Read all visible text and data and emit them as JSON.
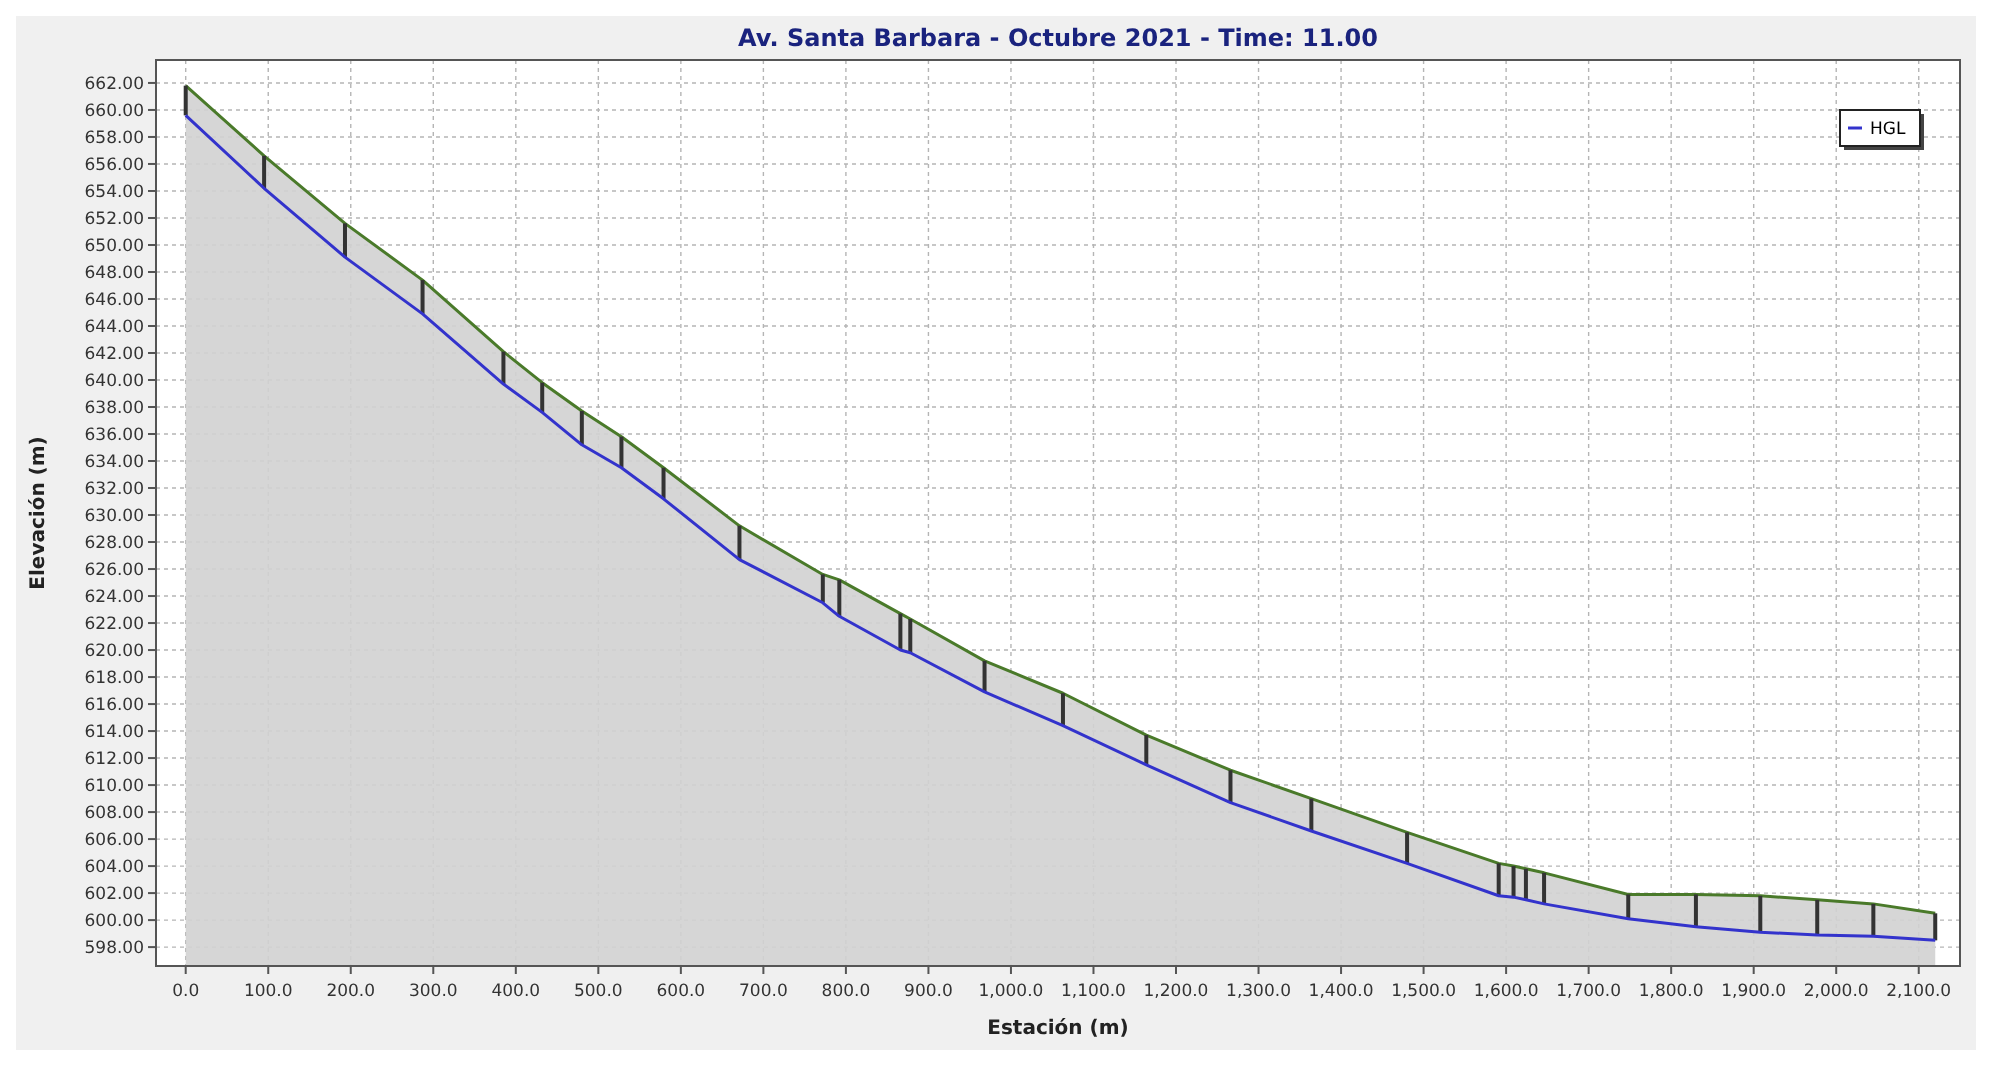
{
  "chart_data": {
    "type": "area",
    "title": "Av. Santa Barbara - Octubre 2021 - Time: 11.00",
    "xlabel": "Estación (m)",
    "ylabel": "Elevación (m)",
    "xlim": [
      -36,
      2150
    ],
    "ylim": [
      596.6,
      663.7
    ],
    "xticks": [
      {
        "value": 0,
        "label": "0.0"
      },
      {
        "value": 100,
        "label": "100.0"
      },
      {
        "value": 200,
        "label": "200.0"
      },
      {
        "value": 300,
        "label": "300.0"
      },
      {
        "value": 400,
        "label": "400.0"
      },
      {
        "value": 500,
        "label": "500.0"
      },
      {
        "value": 600,
        "label": "600.0"
      },
      {
        "value": 700,
        "label": "700.0"
      },
      {
        "value": 800,
        "label": "800.0"
      },
      {
        "value": 900,
        "label": "900.0"
      },
      {
        "value": 1000,
        "label": "1,000.0"
      },
      {
        "value": 1100,
        "label": "1,100.0"
      },
      {
        "value": 1200,
        "label": "1,200.0"
      },
      {
        "value": 1300,
        "label": "1,300.0"
      },
      {
        "value": 1400,
        "label": "1,400.0"
      },
      {
        "value": 1500,
        "label": "1,500.0"
      },
      {
        "value": 1600,
        "label": "1,600.0"
      },
      {
        "value": 1700,
        "label": "1,700.0"
      },
      {
        "value": 1800,
        "label": "1,800.0"
      },
      {
        "value": 1900,
        "label": "1,900.0"
      },
      {
        "value": 2000,
        "label": "2,000.0"
      },
      {
        "value": 2100,
        "label": "2,100.0"
      }
    ],
    "yticks": [
      {
        "value": 598,
        "label": "598.00"
      },
      {
        "value": 600,
        "label": "600.00"
      },
      {
        "value": 602,
        "label": "602.00"
      },
      {
        "value": 604,
        "label": "604.00"
      },
      {
        "value": 606,
        "label": "606.00"
      },
      {
        "value": 608,
        "label": "608.00"
      },
      {
        "value": 610,
        "label": "610.00"
      },
      {
        "value": 612,
        "label": "612.00"
      },
      {
        "value": 614,
        "label": "614.00"
      },
      {
        "value": 616,
        "label": "616.00"
      },
      {
        "value": 618,
        "label": "618.00"
      },
      {
        "value": 620,
        "label": "620.00"
      },
      {
        "value": 622,
        "label": "622.00"
      },
      {
        "value": 624,
        "label": "624.00"
      },
      {
        "value": 626,
        "label": "626.00"
      },
      {
        "value": 628,
        "label": "628.00"
      },
      {
        "value": 630,
        "label": "630.00"
      },
      {
        "value": 632,
        "label": "632.00"
      },
      {
        "value": 634,
        "label": "634.00"
      },
      {
        "value": 636,
        "label": "636.00"
      },
      {
        "value": 638,
        "label": "638.00"
      },
      {
        "value": 640,
        "label": "640.00"
      },
      {
        "value": 642,
        "label": "642.00"
      },
      {
        "value": 644,
        "label": "644.00"
      },
      {
        "value": 646,
        "label": "646.00"
      },
      {
        "value": 648,
        "label": "648.00"
      },
      {
        "value": 650,
        "label": "650.00"
      },
      {
        "value": 652,
        "label": "652.00"
      },
      {
        "value": 654,
        "label": "654.00"
      },
      {
        "value": 656,
        "label": "656.00"
      },
      {
        "value": 658,
        "label": "658.00"
      },
      {
        "value": 660,
        "label": "660.00"
      },
      {
        "value": 662,
        "label": "662.00"
      }
    ],
    "grid": true,
    "legend": "top right",
    "series": [
      {
        "color": "#4a7a2a",
        "x": [
          0,
          95,
          193,
          287,
          385,
          432,
          480,
          528,
          579,
          671,
          772,
          792,
          866,
          878,
          968,
          1063,
          1164,
          1266,
          1364,
          1480,
          1591,
          1609,
          1624,
          1646,
          1748,
          1830,
          1908,
          1977,
          2045,
          2120
        ],
        "values": [
          661.8,
          656.6,
          651.6,
          647.4,
          642.1,
          639.8,
          637.7,
          635.8,
          633.5,
          629.2,
          625.6,
          625.2,
          622.7,
          622.3,
          619.2,
          616.8,
          613.7,
          611.1,
          609.0,
          606.5,
          604.2,
          604.0,
          603.8,
          603.5,
          601.9,
          601.9,
          601.8,
          601.5,
          601.2,
          600.5
        ]
      },
      {
        "type": "bar",
        "color": "#333333",
        "x": [
          0,
          95,
          193,
          287,
          385,
          432,
          480,
          528,
          579,
          671,
          772,
          792,
          866,
          878,
          968,
          1063,
          1164,
          1266,
          1364,
          1480,
          1591,
          1609,
          1624,
          1646,
          1748,
          1830,
          1908,
          1977,
          2045,
          2120
        ],
        "base": [
          659.6,
          654.2,
          649.1,
          644.9,
          639.7,
          637.6,
          635.2,
          633.5,
          631.2,
          626.7,
          623.5,
          622.5,
          620.0,
          619.8,
          616.9,
          614.4,
          611.5,
          608.7,
          606.6,
          604.2,
          601.8,
          601.7,
          601.5,
          601.2,
          600.1,
          599.5,
          599.1,
          598.9,
          598.8,
          598.5
        ],
        "values": [
          2.2,
          2.4,
          2.5,
          2.5,
          2.4,
          2.2,
          2.5,
          2.3,
          2.3,
          2.5,
          2.1,
          2.7,
          2.7,
          2.5,
          2.3,
          2.4,
          2.2,
          2.4,
          2.4,
          2.3,
          2.4,
          2.3,
          2.3,
          2.3,
          1.8,
          2.4,
          2.7,
          2.6,
          2.4,
          2.0
        ]
      },
      {
        "type": "line",
        "name": "HGL",
        "color": "#3333cc",
        "x": [
          0,
          95,
          193,
          287,
          385,
          432,
          480,
          528,
          579,
          671,
          772,
          792,
          866,
          878,
          968,
          1063,
          1164,
          1266,
          1364,
          1480,
          1591,
          1609,
          1624,
          1646,
          1748,
          1830,
          1908,
          1977,
          2045,
          2120
        ],
        "values": [
          659.6,
          654.2,
          649.1,
          644.9,
          639.7,
          637.6,
          635.2,
          633.5,
          631.2,
          626.7,
          623.5,
          622.5,
          620.0,
          619.8,
          616.9,
          614.4,
          611.5,
          608.7,
          606.6,
          604.2,
          601.8,
          601.7,
          601.5,
          601.2,
          600.1,
          599.5,
          599.1,
          598.9,
          598.8,
          598.5
        ]
      }
    ]
  }
}
